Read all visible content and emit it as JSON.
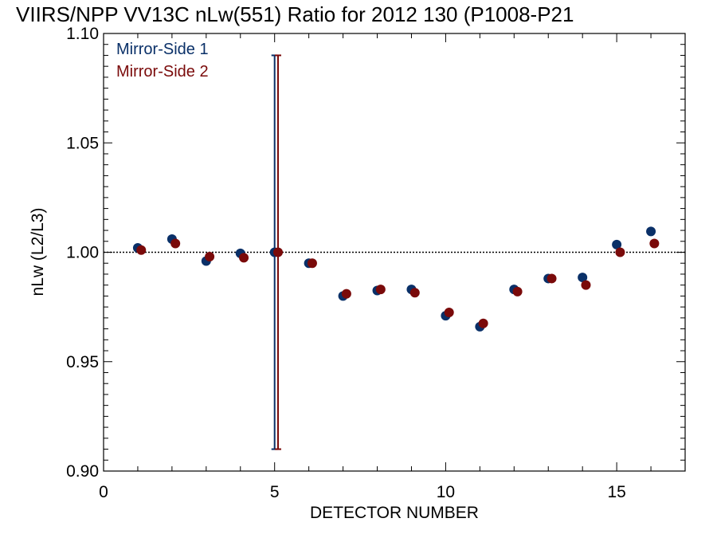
{
  "chart_data": {
    "type": "scatter",
    "title": "VIIRS/NPP VV13C nLw(551) Ratio for 2012 130 (P1008-P21",
    "xlabel": "DETECTOR NUMBER",
    "ylabel": "nLw (L2/L3)",
    "xlim": [
      0,
      17
    ],
    "ylim": [
      0.9,
      1.1
    ],
    "x_ticks": [
      "0",
      "5",
      "10",
      "15"
    ],
    "y_ticks": [
      "0.90",
      "0.95",
      "1.00",
      "1.05",
      "1.10"
    ],
    "reference_line": 1.0,
    "legend_position": "top-left",
    "series": [
      {
        "name": "Mirror-Side 1",
        "color": "#0a3068",
        "x": [
          1,
          2,
          3,
          4,
          5,
          6,
          7,
          8,
          9,
          10,
          11,
          12,
          13,
          14,
          15,
          16
        ],
        "values": [
          1.002,
          1.006,
          0.996,
          0.9995,
          1.0,
          0.995,
          0.98,
          0.9825,
          0.983,
          0.971,
          0.966,
          0.983,
          0.988,
          0.9885,
          1.0035,
          1.0095
        ],
        "error_bar": {
          "x": 5,
          "low": 0.91,
          "high": 1.09
        }
      },
      {
        "name": "Mirror-Side 2",
        "color": "#7a0a0a",
        "x": [
          1.1,
          2.1,
          3.1,
          4.1,
          5.1,
          6.1,
          7.1,
          8.1,
          9.1,
          10.1,
          11.1,
          12.1,
          13.1,
          14.1,
          15.1,
          16.1
        ],
        "values": [
          1.001,
          1.004,
          0.998,
          0.9975,
          1.0,
          0.995,
          0.981,
          0.983,
          0.9815,
          0.9725,
          0.9675,
          0.982,
          0.988,
          0.985,
          1.0,
          1.004
        ],
        "error_bar": {
          "x": 5.1,
          "low": 0.91,
          "high": 1.09
        }
      }
    ]
  }
}
